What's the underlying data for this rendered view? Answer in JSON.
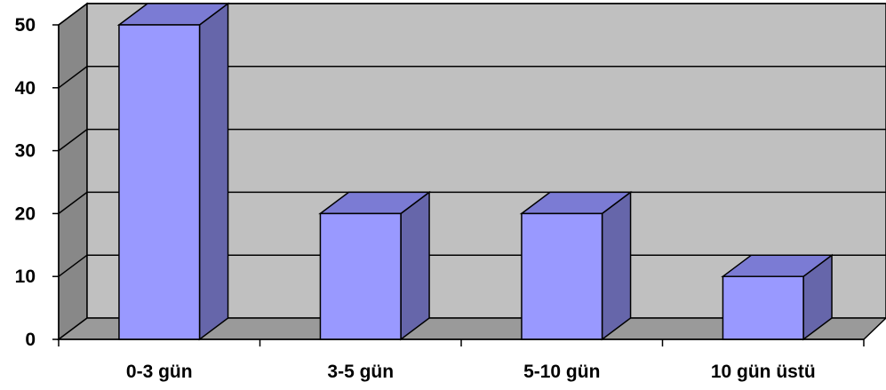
{
  "chart_data": {
    "type": "bar",
    "style": "3d-column",
    "categories": [
      "0-3 gün",
      "3-5 gün",
      "5-10 gün",
      "10 gün üstü"
    ],
    "values": [
      50,
      20,
      20,
      10
    ],
    "y_ticks": [
      "0",
      "10",
      "20",
      "30",
      "40",
      "50"
    ],
    "ylim": [
      0,
      50
    ],
    "grid": true,
    "legend": "none",
    "colors": {
      "bar_front": "#9999ff",
      "bar_top": "#7b7bd4",
      "bar_side": "#6666aa",
      "back_wall": "#c0c0c0",
      "side_wall": "#888888",
      "floor": "#9a9a9a"
    }
  }
}
